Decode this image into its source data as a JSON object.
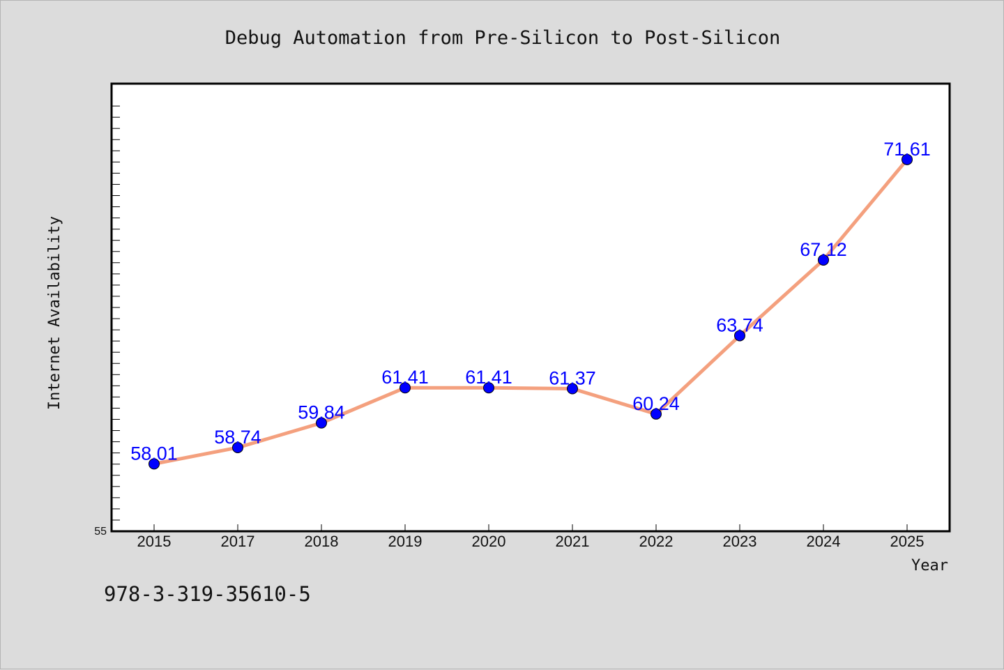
{
  "footnote": "978-3-319-35610-5",
  "chart_data": {
    "type": "line",
    "title": "Debug Automation from Pre-Silicon to Post-Silicon",
    "xlabel": "Year",
    "ylabel": "Internet Availability",
    "categories": [
      "2015",
      "2017",
      "2018",
      "2019",
      "2020",
      "2021",
      "2022",
      "2023",
      "2024",
      "2025"
    ],
    "series": [
      {
        "values": [
          58.01,
          58.74,
          59.84,
          61.41,
          61.41,
          61.37,
          60.24,
          63.74,
          67.12,
          71.61
        ]
      }
    ],
    "value_labels": [
      "58.01",
      "58.74",
      "59.84",
      "61.41",
      "61.41",
      "61.37",
      "60.24",
      "63.74",
      "67.12",
      "71.61"
    ],
    "ylim": [
      55,
      75
    ],
    "y_tick_labels": [
      "55"
    ],
    "grid": false,
    "legend": "none",
    "colors": {
      "line": "#f4a07e",
      "marker": "#0000ff",
      "label": "#0000ff",
      "plot_background": "#ffffff",
      "figure_background": "#dcdcdc"
    }
  }
}
